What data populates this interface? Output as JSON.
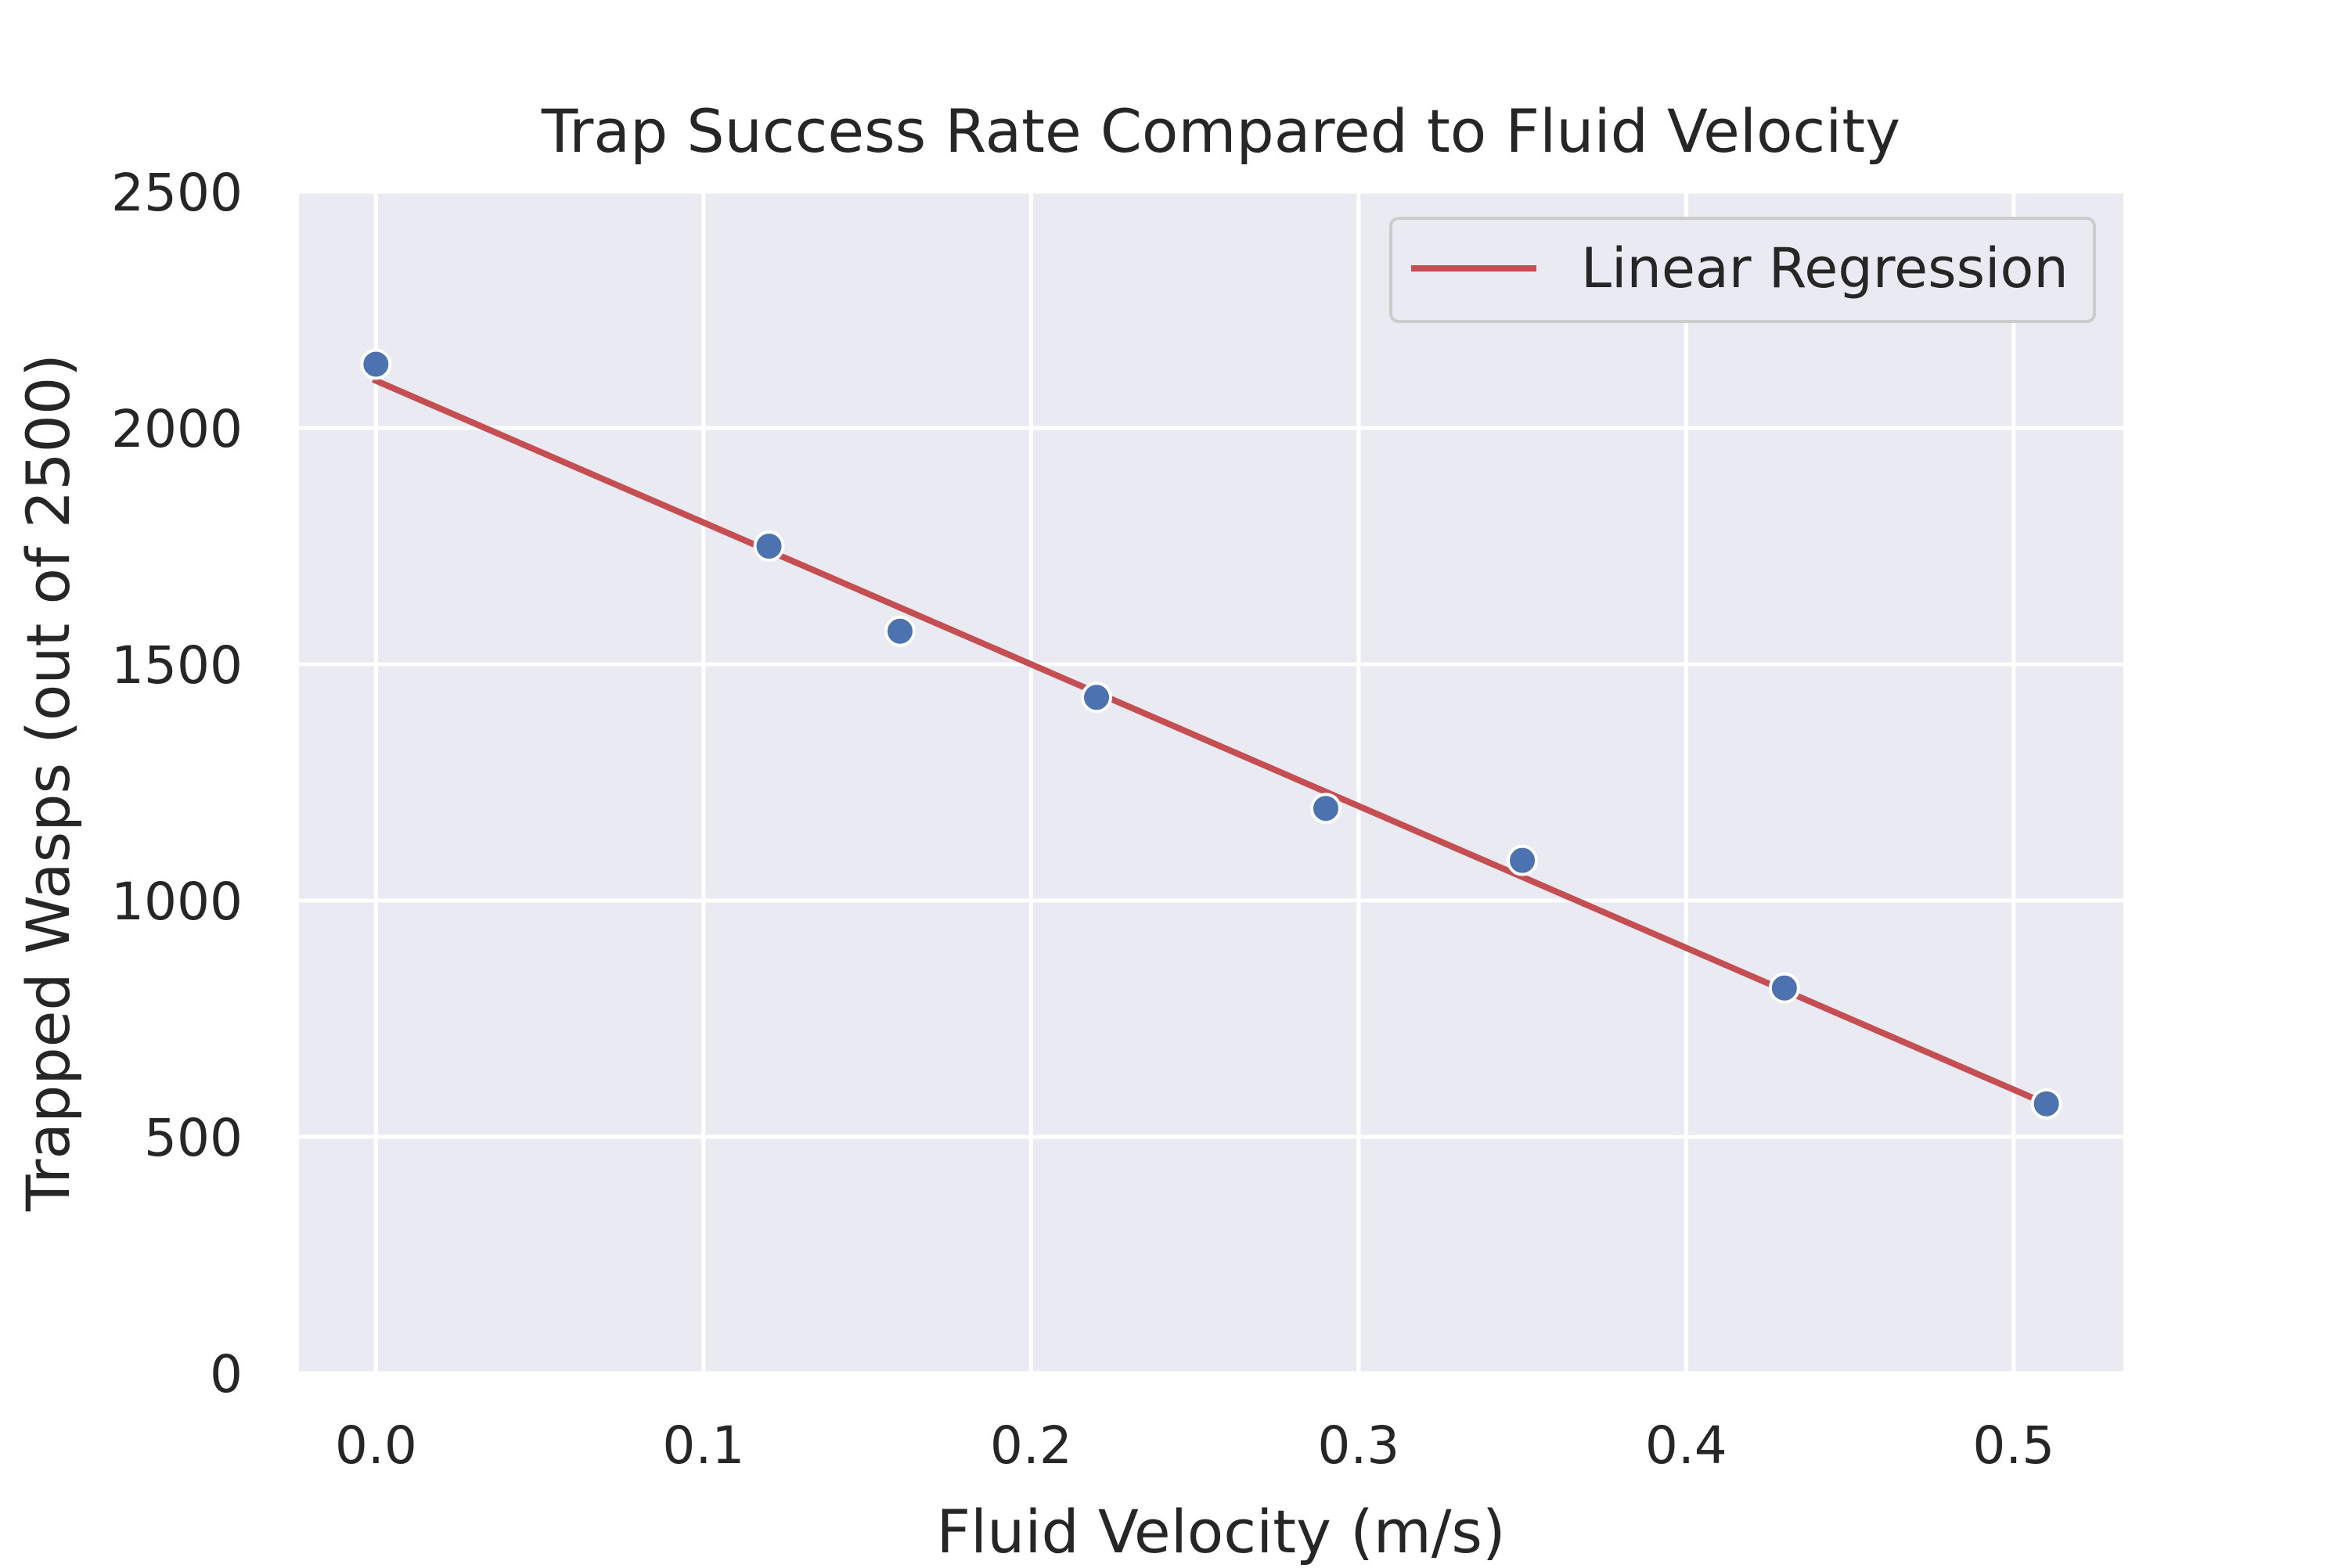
{
  "chart_data": {
    "type": "scatter",
    "title": "Trap Success Rate Compared to Fluid Velocity",
    "xlabel": "Fluid Velocity (m/s)",
    "ylabel": "Trapped Wasps (out of 2500)",
    "xlim": [
      -0.0235,
      0.5335
    ],
    "ylim": [
      0,
      2500
    ],
    "x_ticks": [
      0.0,
      0.1,
      0.2,
      0.3,
      0.4,
      0.5
    ],
    "x_tick_labels": [
      "0.0",
      "0.1",
      "0.2",
      "0.3",
      "0.4",
      "0.5"
    ],
    "y_ticks": [
      0,
      500,
      1000,
      1500,
      2000,
      2500
    ],
    "y_tick_labels": [
      "0",
      "500",
      "1000",
      "1500",
      "2000",
      "2500"
    ],
    "grid": true,
    "legend_position": "top-right",
    "series": [
      {
        "kind": "scatter",
        "color": "#4c72b0",
        "x": [
          0.0,
          0.12,
          0.16,
          0.22,
          0.29,
          0.35,
          0.43,
          0.51
        ],
        "y": [
          2135,
          1750,
          1570,
          1430,
          1195,
          1085,
          815,
          570
        ]
      },
      {
        "kind": "line",
        "name": "Linear Regression",
        "color": "#c44e52",
        "x": [
          0.0,
          0.51
        ],
        "y": [
          2100,
          570
        ]
      }
    ],
    "colors": {
      "plot_background": "#eaeaf2",
      "grid": "#ffffff",
      "text": "#262626"
    }
  }
}
